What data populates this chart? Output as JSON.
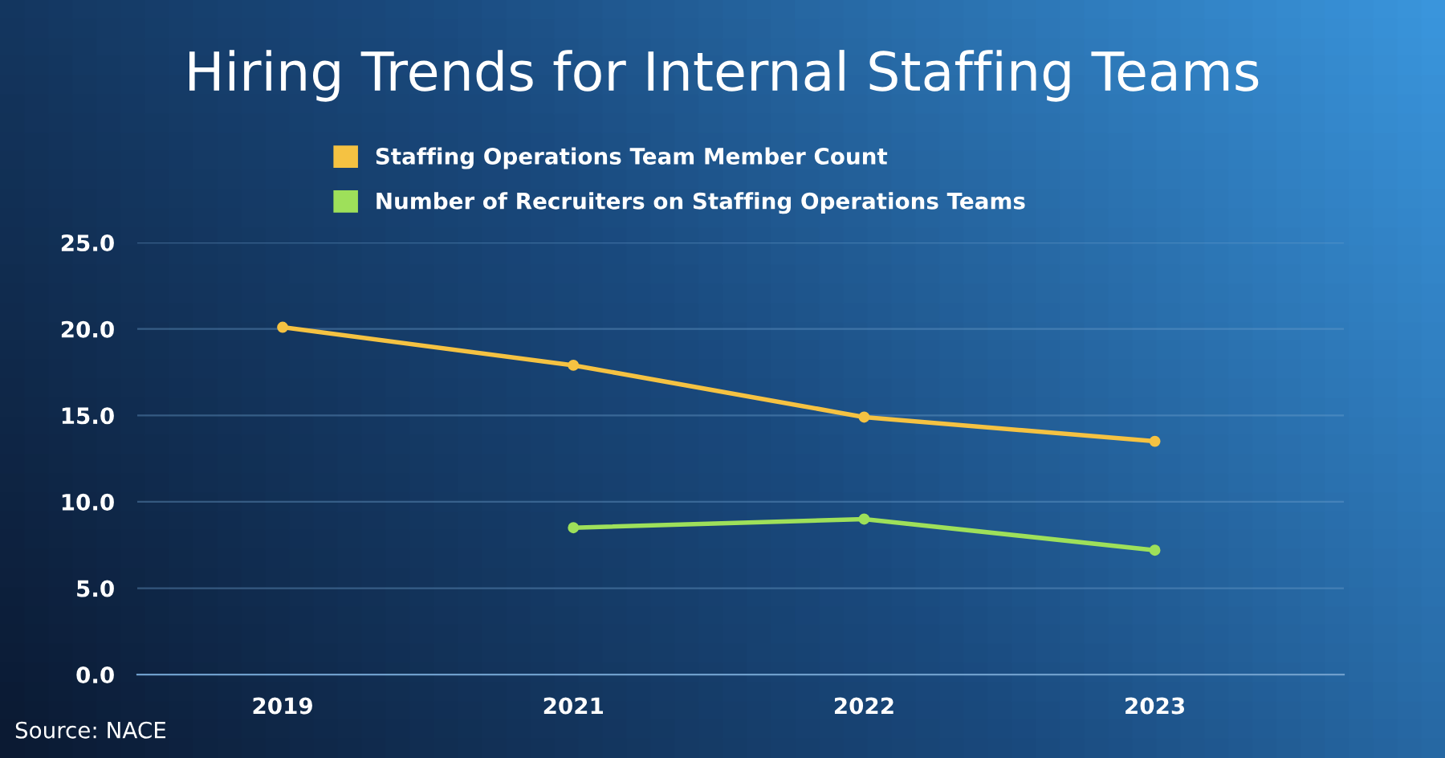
{
  "chart_data": {
    "type": "line",
    "title": "Hiring Trends for Internal Staffing Teams",
    "categories": [
      "2019",
      "2021",
      "2022",
      "2023"
    ],
    "series": [
      {
        "name": "Staffing Operations Team Member Count",
        "color": "#f5c242",
        "values": [
          20.1,
          17.9,
          14.9,
          13.5
        ]
      },
      {
        "name": "Number of Recruiters on Staffing Operations Teams",
        "color": "#9ee05a",
        "values": [
          null,
          8.5,
          9.0,
          7.2
        ]
      }
    ],
    "ylim": [
      0,
      25
    ],
    "yticks": [
      {
        "value": 0,
        "label": "0.0"
      },
      {
        "value": 5,
        "label": "5.0"
      },
      {
        "value": 10,
        "label": "10.0"
      },
      {
        "value": 15,
        "label": "15.0"
      },
      {
        "value": 20,
        "label": "20.0"
      },
      {
        "value": 25,
        "label": "25.0"
      }
    ],
    "grid": "y",
    "legend": "top",
    "marker": "circle",
    "line_style": "solid",
    "annotations": [
      "Source: NACE"
    ]
  }
}
